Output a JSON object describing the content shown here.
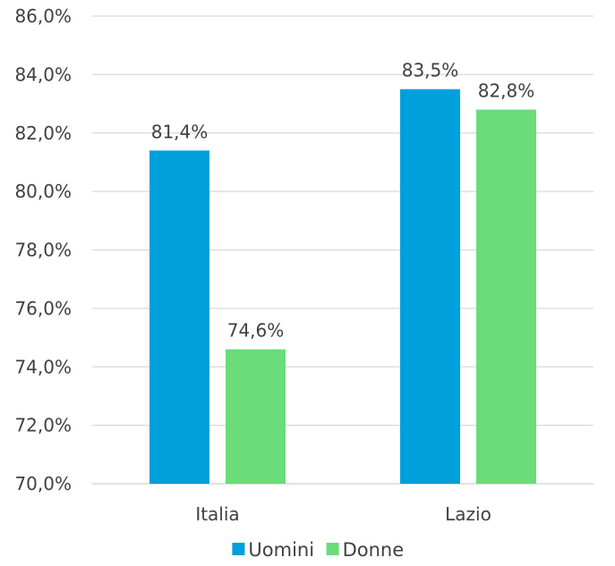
{
  "chart_data": {
    "type": "bar",
    "categories": [
      "Italia",
      "Lazio"
    ],
    "series": [
      {
        "name": "Uomini",
        "values": [
          81.4,
          83.5
        ],
        "labels": [
          "81,4%",
          "83,5%"
        ],
        "color": "#00A0DC"
      },
      {
        "name": "Donne",
        "values": [
          74.6,
          82.8
        ],
        "labels": [
          "74,6%",
          "82,8%"
        ],
        "color": "#6ADC7A"
      }
    ],
    "y_ticks": [
      "70,0%",
      "72,0%",
      "74,0%",
      "76,0%",
      "78,0%",
      "80,0%",
      "82,0%",
      "84,0%",
      "86,0%"
    ],
    "ylim": [
      70,
      86
    ],
    "y_step": 2,
    "grid": true,
    "legend_position": "bottom",
    "title": "",
    "xlabel": "",
    "ylabel": ""
  }
}
